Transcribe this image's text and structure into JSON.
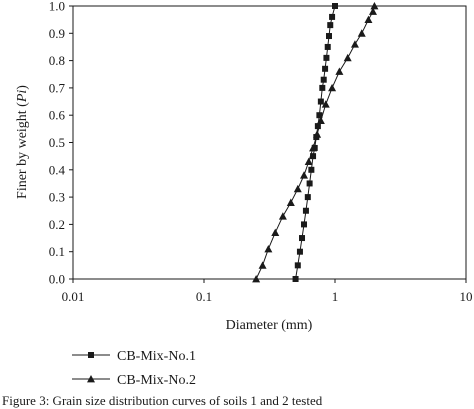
{
  "chart_data": {
    "type": "line",
    "x_scale": "log",
    "xlim": [
      0.01,
      10
    ],
    "ylim": [
      0.0,
      1.0
    ],
    "xlabel": "Diameter (mm)",
    "ylabel": {
      "prefix": "Finer by weight (",
      "italic": "Pi",
      "suffix": ")"
    },
    "x_ticks": [
      {
        "value": 0.01,
        "label": "0.01"
      },
      {
        "value": 0.1,
        "label": "0.1"
      },
      {
        "value": 1,
        "label": "1"
      },
      {
        "value": 10,
        "label": "10"
      }
    ],
    "y_ticks": [
      {
        "value": 0.0,
        "label": "0.0"
      },
      {
        "value": 0.1,
        "label": "0.1"
      },
      {
        "value": 0.2,
        "label": "0.2"
      },
      {
        "value": 0.3,
        "label": "0.3"
      },
      {
        "value": 0.4,
        "label": "0.4"
      },
      {
        "value": 0.5,
        "label": "0.5"
      },
      {
        "value": 0.6,
        "label": "0.6"
      },
      {
        "value": 0.7,
        "label": "0.7"
      },
      {
        "value": 0.8,
        "label": "0.8"
      },
      {
        "value": 0.9,
        "label": "0.9"
      },
      {
        "value": 1.0,
        "label": "1.0"
      }
    ],
    "grid": false,
    "legend_position": "bottom-left",
    "series": [
      {
        "name": "CB-Mix-No.1",
        "marker": "square",
        "x": [
          0.5,
          0.52,
          0.54,
          0.56,
          0.58,
          0.6,
          0.62,
          0.64,
          0.66,
          0.68,
          0.7,
          0.72,
          0.74,
          0.76,
          0.78,
          0.8,
          0.82,
          0.84,
          0.86,
          0.88,
          0.9,
          0.92,
          0.95,
          1.0
        ],
        "y": [
          0.0,
          0.05,
          0.1,
          0.15,
          0.2,
          0.25,
          0.3,
          0.35,
          0.4,
          0.45,
          0.48,
          0.52,
          0.56,
          0.6,
          0.65,
          0.7,
          0.73,
          0.77,
          0.81,
          0.85,
          0.89,
          0.93,
          0.96,
          1.0
        ]
      },
      {
        "name": "CB-Mix-No.2",
        "marker": "triangle",
        "x": [
          0.25,
          0.28,
          0.31,
          0.35,
          0.4,
          0.46,
          0.52,
          0.58,
          0.63,
          0.68,
          0.73,
          0.78,
          0.85,
          0.95,
          1.08,
          1.25,
          1.42,
          1.6,
          1.8,
          1.95,
          2.0
        ],
        "y": [
          0.0,
          0.05,
          0.11,
          0.17,
          0.23,
          0.28,
          0.33,
          0.38,
          0.43,
          0.48,
          0.53,
          0.58,
          0.64,
          0.7,
          0.76,
          0.81,
          0.86,
          0.9,
          0.95,
          0.98,
          1.0
        ]
      }
    ]
  },
  "caption_fragment": "Figure 3: Grain size distribution curves of soils 1 and 2 tested"
}
